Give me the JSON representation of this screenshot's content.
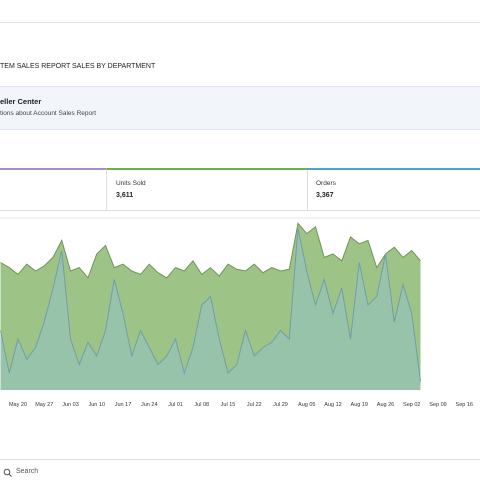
{
  "tabs": [
    "TEM SALES REPORT",
    "SALES BY DEPARTMENT"
  ],
  "banner": {
    "title": "eller Center",
    "text": "tions about Account Sales Report"
  },
  "metrics": [
    {
      "label": "Units Sold",
      "value": "3,611"
    },
    {
      "label": "Orders",
      "value": "3,367"
    }
  ],
  "chart_data": {
    "type": "area",
    "categories": [
      null,
      null,
      "May 20",
      null,
      null,
      "May 27",
      null,
      null,
      "Jun 03",
      null,
      null,
      "Jun 10",
      null,
      null,
      "Jun 17",
      null,
      null,
      "Jun 24",
      null,
      null,
      "Jul 01",
      null,
      null,
      "Jul 08",
      null,
      null,
      "Jul 15",
      null,
      null,
      "Jul 22",
      null,
      null,
      "Jul 29",
      null,
      null,
      "Aug 05",
      null,
      null,
      "Aug 12",
      null,
      null,
      "Aug 19",
      null,
      null,
      "Aug 26",
      null,
      null,
      "Sep 02",
      null,
      null,
      "Sep 09",
      null,
      null,
      "Sep 16"
    ],
    "ylim": [
      0,
      100
    ],
    "series": [
      {
        "color": "#8db872",
        "values": [
          75,
          72,
          68,
          74,
          70,
          73,
          78,
          88,
          70,
          72,
          66,
          80,
          85,
          72,
          74,
          70,
          68,
          74,
          69,
          66,
          72,
          70,
          76,
          68,
          72,
          67,
          74,
          71,
          70,
          74,
          69,
          72,
          70,
          71,
          98,
          92,
          96,
          78,
          80,
          76,
          90,
          86,
          88,
          72,
          80,
          84,
          78,
          82,
          76,
          null,
          null,
          null,
          null,
          null
        ]
      },
      {
        "color": "#8ec3d6",
        "values": [
          35,
          10,
          30,
          18,
          25,
          40,
          60,
          82,
          30,
          15,
          28,
          20,
          35,
          65,
          45,
          20,
          35,
          25,
          15,
          20,
          30,
          10,
          25,
          50,
          55,
          30,
          10,
          15,
          35,
          20,
          25,
          28,
          35,
          30,
          95,
          70,
          50,
          65,
          45,
          60,
          30,
          75,
          50,
          55,
          80,
          40,
          62,
          45,
          5,
          null,
          null,
          null,
          null,
          null
        ]
      }
    ]
  },
  "search": "Search"
}
